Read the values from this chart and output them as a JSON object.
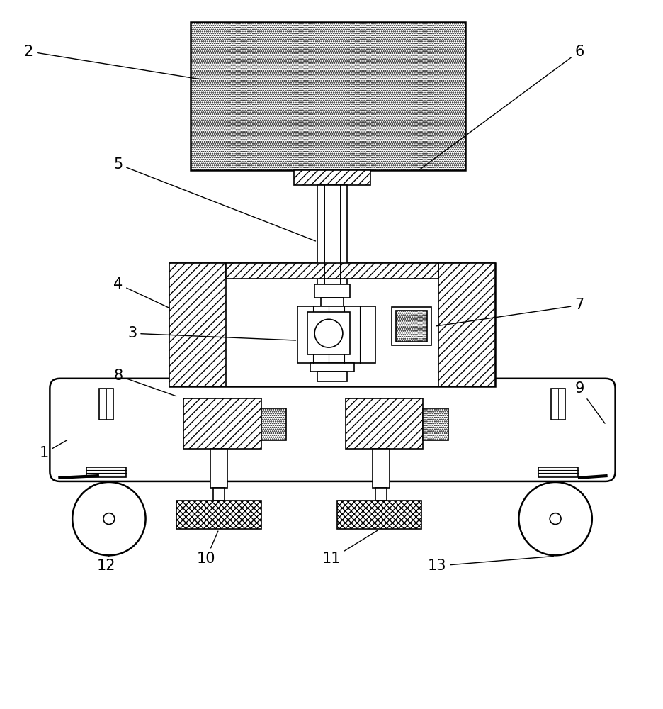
{
  "bg_color": "#ffffff",
  "fig_w": 9.36,
  "fig_h": 10.0,
  "lw": 1.2,
  "lw2": 1.8
}
